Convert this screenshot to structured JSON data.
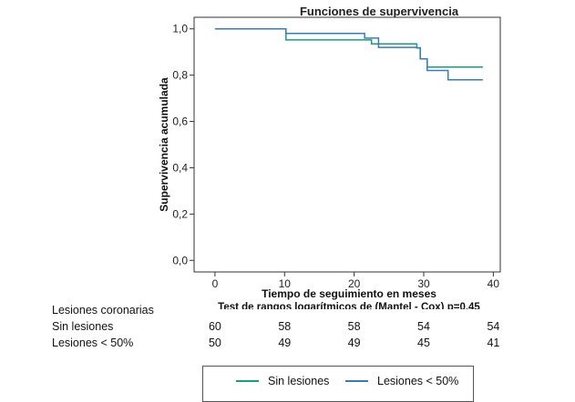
{
  "chart_data": {
    "type": "line",
    "title": "Funciones de supervivencia",
    "xlabel": "Tiempo de seguimiento en meses",
    "ylabel": "Supervivencia acumulada",
    "note": "Test de rangos logarítmicos de (Mantel - Cox) p=0,45",
    "xlim": [
      -3,
      41
    ],
    "ylim": [
      -0.05,
      1.05
    ],
    "x_ticks": [
      0,
      10,
      20,
      30,
      40
    ],
    "y_ticks": [
      "1,0",
      "0,8",
      "0,6",
      "0,4",
      "0,2",
      "0,0"
    ],
    "y_tick_values": [
      1.0,
      0.8,
      0.6,
      0.4,
      0.2,
      0.0
    ],
    "grid": false,
    "series": [
      {
        "name": "Sin lesiones",
        "color": "#1a9e7a",
        "x": [
          0,
          10,
          10.2,
          20.5,
          22.5,
          29,
          29.5,
          30.5,
          38.5
        ],
        "y": [
          1.0,
          1.0,
          0.952,
          0.952,
          0.935,
          0.918,
          0.87,
          0.835,
          0.835
        ]
      },
      {
        "name": "Lesiones < 50%",
        "color": "#3a7ab5",
        "x": [
          0,
          10,
          10.2,
          20.5,
          21.5,
          23.5,
          29,
          29.5,
          30.5,
          33.5,
          38.5
        ],
        "y": [
          1.0,
          1.0,
          0.98,
          0.98,
          0.96,
          0.92,
          0.918,
          0.87,
          0.82,
          0.78,
          0.78
        ]
      }
    ]
  },
  "risk_table": {
    "header": "Lesiones coronarias",
    "times": [
      0,
      10,
      20,
      30,
      40
    ],
    "rows": [
      {
        "label": "Sin lesiones",
        "values": [
          "60",
          "58",
          "58",
          "54",
          "54"
        ]
      },
      {
        "label": "Lesiones < 50%",
        "values": [
          "50",
          "49",
          "49",
          "45",
          "41"
        ]
      }
    ]
  },
  "legend": {
    "items": [
      {
        "label": "Sin lesiones",
        "color": "#1a9e7a"
      },
      {
        "label": "Lesiones < 50%",
        "color": "#3a7ab5"
      }
    ]
  }
}
